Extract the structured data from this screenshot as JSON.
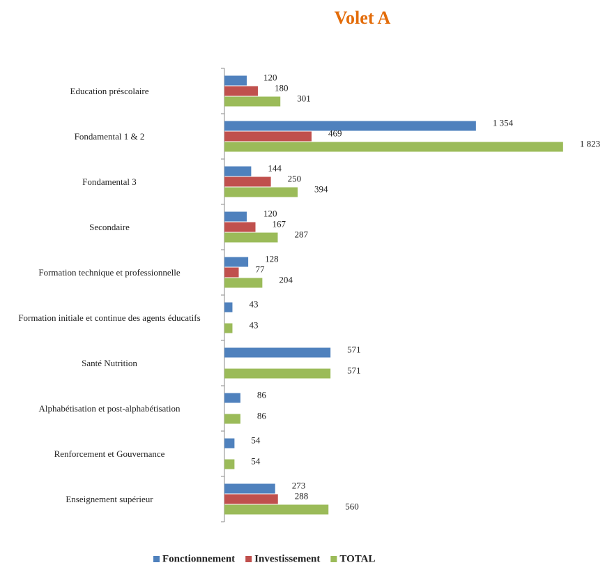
{
  "chart_data": {
    "type": "bar",
    "orientation": "horizontal",
    "title": "Volet A",
    "categories": [
      "Education préscolaire",
      "Fondamental 1 & 2",
      "Fondamental 3",
      "Secondaire",
      "Formation technique et professionnelle",
      "Formation initiale et continue des agents éducatifs",
      "Santé Nutrition",
      "Alphabétisation et post-alphabétisation",
      "Renforcement et  Gouvernance",
      "Enseignement supérieur"
    ],
    "series": [
      {
        "name": "Fonctionnement",
        "color": "#4f81bd",
        "values": [
          120,
          1354,
          144,
          120,
          128,
          43,
          571,
          86,
          54,
          273
        ],
        "value_labels": [
          "120",
          "1 354",
          "144",
          "120",
          "128",
          "43",
          "571",
          "86",
          "54",
          "273"
        ]
      },
      {
        "name": "Investissement",
        "color": "#c0504d",
        "values": [
          180,
          469,
          250,
          167,
          77,
          null,
          null,
          null,
          null,
          288
        ],
        "value_labels": [
          "180",
          "469",
          "250",
          "167",
          "77",
          null,
          null,
          null,
          null,
          "288"
        ]
      },
      {
        "name": "TOTAL",
        "color": "#9bbb59",
        "values": [
          301,
          1823,
          394,
          287,
          204,
          43,
          571,
          86,
          54,
          560
        ],
        "value_labels": [
          "301",
          "1 823",
          "394",
          "287",
          "204",
          "43",
          "571",
          "86",
          "54",
          "560"
        ]
      }
    ],
    "xlim": [
      0,
      2000
    ],
    "legend": "bottom"
  }
}
